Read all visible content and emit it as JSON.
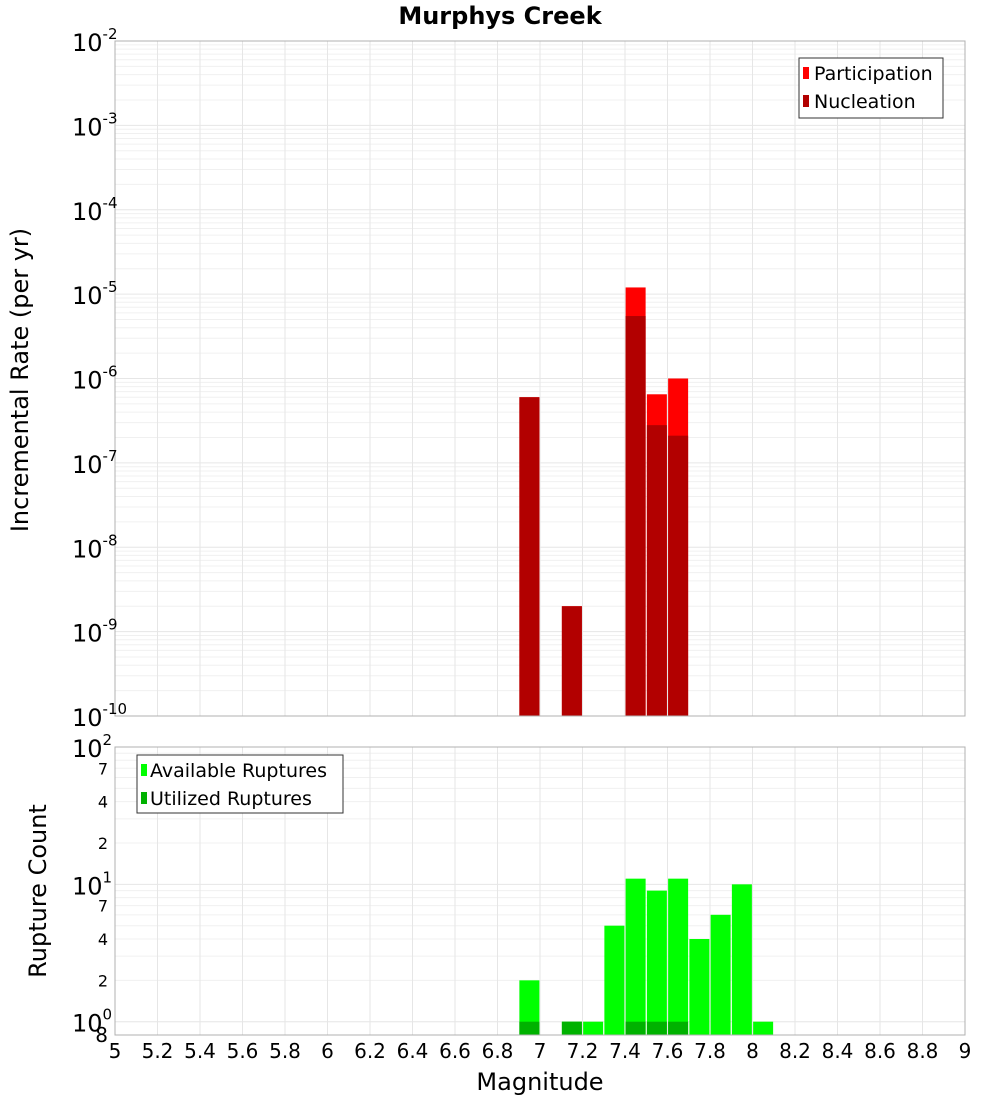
{
  "chart_data": [
    {
      "type": "bar",
      "title": "Murphys Creek",
      "xlabel": "",
      "ylabel": "Incremental Rate (per yr)",
      "yscale": "log",
      "ylim": [
        1e-10,
        0.01
      ],
      "xlim": [
        5,
        9
      ],
      "grid": true,
      "legend_position": "top-right",
      "y_tick_exponents": [
        -10,
        -9,
        -8,
        -7,
        -6,
        -5,
        -4,
        -3,
        -2
      ],
      "series": [
        {
          "name": "Participation",
          "color": "#ff0000",
          "x": [
            6.95,
            7.15,
            7.45,
            7.55,
            7.65
          ],
          "values": [
            6e-07,
            2e-09,
            1.2e-05,
            6.5e-07,
            1e-06
          ]
        },
        {
          "name": "Nucleation",
          "color": "#b20000",
          "x": [
            6.95,
            7.15,
            7.45,
            7.55,
            7.65
          ],
          "values": [
            6e-07,
            2e-09,
            5.5e-06,
            2.8e-07,
            2.1e-07
          ]
        }
      ]
    },
    {
      "type": "bar",
      "xlabel": "Magnitude",
      "ylabel": "Rupture Count",
      "yscale": "log",
      "ylim": [
        0.8,
        100
      ],
      "xlim": [
        5,
        9
      ],
      "grid": true,
      "legend_position": "top-left",
      "y_major_exponents": [
        0,
        1,
        2
      ],
      "y_minor_ticks": [
        2,
        4,
        7,
        20,
        40,
        70
      ],
      "y_bottom_label": "8",
      "x_ticks": [
        "5",
        "5.2",
        "5.4",
        "5.6",
        "5.8",
        "6",
        "6.2",
        "6.4",
        "6.6",
        "6.8",
        "7",
        "7.2",
        "7.4",
        "7.6",
        "7.8",
        "8",
        "8.2",
        "8.4",
        "8.6",
        "8.8",
        "9"
      ],
      "series": [
        {
          "name": "Available Ruptures",
          "color": "#00ff00",
          "x": [
            6.95,
            7.15,
            7.25,
            7.35,
            7.45,
            7.55,
            7.65,
            7.75,
            7.85,
            7.95,
            8.05
          ],
          "values": [
            2,
            1,
            1,
            5,
            11,
            9,
            11,
            4,
            6,
            10,
            1
          ]
        },
        {
          "name": "Utilized Ruptures",
          "color": "#00b200",
          "x": [
            6.95,
            7.15,
            7.45,
            7.55,
            7.65
          ],
          "values": [
            1,
            1,
            1,
            1,
            1
          ]
        }
      ]
    }
  ]
}
